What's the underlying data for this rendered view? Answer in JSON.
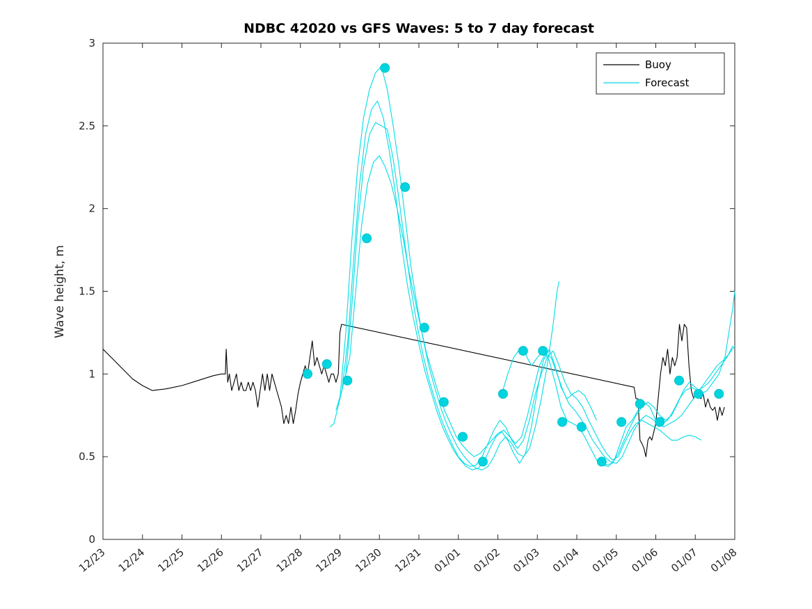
{
  "chart_data": {
    "type": "line",
    "title": "NDBC 42020 vs GFS Waves: 5 to 7 day forecast",
    "xlabel": "",
    "ylabel": "Wave height, m",
    "xlim": [
      0,
      16
    ],
    "ylim": [
      0,
      3
    ],
    "grid": false,
    "yticks": [
      0,
      0.5,
      1,
      1.5,
      2,
      2.5,
      3
    ],
    "ytick_labels": [
      "0",
      "0.5",
      "1",
      "1.5",
      "2",
      "2.5",
      "3"
    ],
    "xticks": [
      0,
      1,
      2,
      3,
      4,
      5,
      6,
      7,
      8,
      9,
      10,
      11,
      12,
      13,
      14,
      15,
      16
    ],
    "xtick_labels": [
      "12/23",
      "12/24",
      "12/25",
      "12/26",
      "12/27",
      "12/28",
      "12/29",
      "12/30",
      "12/31",
      "01/01",
      "01/02",
      "01/03",
      "01/04",
      "01/05",
      "01/06",
      "01/07",
      "01/08"
    ],
    "x_unit": "days since 12/23",
    "colors": {
      "buoy": "#000000",
      "forecast": "#00DCE6",
      "marker_fill": "#00D4DE",
      "marker_edge": "#00C2CE",
      "axis": "#262626",
      "background": "#FFFFFF"
    },
    "legend": {
      "position": "top-right",
      "entries": [
        {
          "label": "Buoy",
          "color": "#000000"
        },
        {
          "label": "Forecast",
          "color": "#00DCE6"
        }
      ]
    },
    "series": [
      {
        "name": "Buoy",
        "type": "line",
        "color": "#000000",
        "x": [
          0,
          0.25,
          0.5,
          0.75,
          1.0,
          1.25,
          1.6,
          2.0,
          2.4,
          2.8,
          3.0,
          3.05,
          3.1,
          3.12,
          3.16,
          3.2,
          3.26,
          3.32,
          3.38,
          3.44,
          3.5,
          3.56,
          3.62,
          3.68,
          3.74,
          3.8,
          3.86,
          3.92,
          3.98,
          4.04,
          4.1,
          4.16,
          4.22,
          4.28,
          4.34,
          4.4,
          4.46,
          4.52,
          4.58,
          4.64,
          4.7,
          4.76,
          4.82,
          4.88,
          4.94,
          5.0,
          5.06,
          5.12,
          5.18,
          5.24,
          5.3,
          5.36,
          5.42,
          5.48,
          5.54,
          5.6,
          5.66,
          5.72,
          5.78,
          5.84,
          5.9,
          5.96,
          6.0,
          6.04,
          13.45,
          13.5,
          13.55,
          13.6,
          13.65,
          13.7,
          13.75,
          13.8,
          13.85,
          13.9,
          13.95,
          14.0,
          14.06,
          14.12,
          14.18,
          14.24,
          14.3,
          14.36,
          14.42,
          14.48,
          14.54,
          14.6,
          14.66,
          14.72,
          14.78,
          14.84,
          14.9,
          14.96,
          15.02,
          15.08,
          15.14,
          15.2,
          15.26,
          15.32,
          15.38,
          15.44,
          15.5,
          15.56,
          15.62,
          15.68,
          15.74
        ],
        "y": [
          1.15,
          1.09,
          1.03,
          0.97,
          0.93,
          0.9,
          0.91,
          0.93,
          0.96,
          0.99,
          1.0,
          1.0,
          1.0,
          1.15,
          0.95,
          1.0,
          0.9,
          0.95,
          1.0,
          0.9,
          0.95,
          0.9,
          0.9,
          0.95,
          0.9,
          0.95,
          0.9,
          0.8,
          0.9,
          1.0,
          0.9,
          1.0,
          0.9,
          1.0,
          0.95,
          0.9,
          0.85,
          0.8,
          0.7,
          0.75,
          0.7,
          0.8,
          0.7,
          0.78,
          0.88,
          0.95,
          1.0,
          1.05,
          1.0,
          1.1,
          1.2,
          1.05,
          1.1,
          1.05,
          1.0,
          1.05,
          1.0,
          0.95,
          1.0,
          1.0,
          0.95,
          1.0,
          1.25,
          1.3,
          0.92,
          0.85,
          0.85,
          0.6,
          0.58,
          0.55,
          0.5,
          0.6,
          0.62,
          0.6,
          0.65,
          0.7,
          0.85,
          1.0,
          1.1,
          1.05,
          1.15,
          1.0,
          1.1,
          1.05,
          1.1,
          1.3,
          1.2,
          1.3,
          1.28,
          1.05,
          0.9,
          0.85,
          0.9,
          0.88,
          0.85,
          0.88,
          0.8,
          0.85,
          0.8,
          0.78,
          0.8,
          0.72,
          0.8,
          0.75,
          0.8
        ]
      },
      {
        "name": "Forecast run 1",
        "type": "line",
        "color": "#00DCE6",
        "x": [
          5.75,
          5.85,
          6.0,
          6.15,
          6.3,
          6.45,
          6.6,
          6.75,
          6.9,
          7.05,
          7.2,
          7.35,
          7.5,
          7.65,
          7.8,
          7.95,
          8.1,
          8.25,
          8.4,
          8.55,
          8.7,
          8.85,
          9.0,
          9.15,
          9.3,
          9.45,
          9.6,
          9.75,
          9.9,
          10.05,
          10.2,
          10.35,
          10.5,
          10.65,
          10.8,
          10.95,
          11.1,
          11.25,
          11.4,
          11.5,
          11.55
        ],
        "y": [
          0.68,
          0.7,
          0.85,
          1.25,
          1.8,
          2.25,
          2.55,
          2.72,
          2.82,
          2.86,
          2.72,
          2.5,
          2.25,
          1.95,
          1.65,
          1.42,
          1.22,
          1.05,
          0.92,
          0.8,
          0.7,
          0.62,
          0.55,
          0.5,
          0.46,
          0.43,
          0.42,
          0.44,
          0.5,
          0.58,
          0.62,
          0.58,
          0.52,
          0.5,
          0.55,
          0.68,
          0.85,
          1.05,
          1.3,
          1.5,
          1.56
        ]
      },
      {
        "name": "Forecast run 2",
        "type": "line",
        "color": "#00DCE6",
        "x": [
          5.9,
          6.05,
          6.2,
          6.35,
          6.5,
          6.65,
          6.8,
          6.95,
          7.1,
          7.25,
          7.4,
          7.55,
          7.7,
          7.85,
          8.0,
          8.15,
          8.3,
          8.45,
          8.6,
          8.75,
          8.9,
          9.05,
          9.2,
          9.35,
          9.5,
          9.65,
          9.8,
          9.95,
          10.1,
          10.25,
          10.4,
          10.55,
          10.7,
          10.85,
          11.0,
          11.15,
          11.3,
          11.45,
          11.6,
          11.75,
          11.9,
          12.05,
          12.2,
          12.35,
          12.5
        ],
        "y": [
          0.78,
          0.9,
          1.2,
          1.7,
          2.15,
          2.45,
          2.6,
          2.65,
          2.55,
          2.35,
          2.1,
          1.8,
          1.55,
          1.35,
          1.18,
          1.02,
          0.9,
          0.78,
          0.68,
          0.6,
          0.53,
          0.48,
          0.44,
          0.42,
          0.43,
          0.47,
          0.55,
          0.62,
          0.65,
          0.6,
          0.52,
          0.46,
          0.52,
          0.68,
          0.9,
          1.08,
          1.15,
          1.05,
          0.92,
          0.85,
          0.88,
          0.9,
          0.87,
          0.8,
          0.72
        ]
      },
      {
        "name": "Forecast run 3",
        "type": "line",
        "color": "#00DCE6",
        "x": [
          6.0,
          6.15,
          6.3,
          6.45,
          6.6,
          6.75,
          6.9,
          7.05,
          7.2,
          7.35,
          7.5,
          7.65,
          7.8,
          7.95,
          8.1,
          8.25,
          8.4,
          8.55,
          8.7,
          8.85,
          9.0,
          9.15,
          9.3,
          9.45,
          9.6,
          9.75,
          9.9,
          10.05,
          10.2,
          10.35,
          10.5,
          10.65,
          10.8,
          10.95,
          11.1,
          11.25,
          11.4,
          11.55,
          11.7,
          11.85,
          12.0,
          12.15,
          12.3,
          12.45,
          12.6,
          12.75,
          12.9,
          13.05,
          13.2,
          13.35,
          13.5,
          13.65,
          13.8,
          13.95,
          14.1,
          14.25,
          14.4,
          14.55,
          14.7,
          14.85,
          15.0,
          15.15
        ],
        "y": [
          0.85,
          1.0,
          1.4,
          1.9,
          2.25,
          2.45,
          2.52,
          2.5,
          2.48,
          2.3,
          2.05,
          1.78,
          1.52,
          1.3,
          1.12,
          0.97,
          0.85,
          0.74,
          0.65,
          0.57,
          0.5,
          0.46,
          0.44,
          0.45,
          0.5,
          0.58,
          0.66,
          0.72,
          0.68,
          0.6,
          0.55,
          0.6,
          0.72,
          0.88,
          1.0,
          1.1,
          1.14,
          1.05,
          0.95,
          0.88,
          0.85,
          0.8,
          0.72,
          0.65,
          0.58,
          0.52,
          0.48,
          0.5,
          0.58,
          0.65,
          0.7,
          0.72,
          0.7,
          0.68,
          0.66,
          0.63,
          0.6,
          0.6,
          0.62,
          0.63,
          0.62,
          0.6
        ]
      },
      {
        "name": "Forecast run 4",
        "type": "line",
        "color": "#00DCE6",
        "x": [
          6.1,
          6.25,
          6.4,
          6.55,
          6.7,
          6.85,
          7.0,
          7.15,
          7.3,
          7.45,
          7.6,
          7.75,
          7.9,
          8.05,
          8.2,
          8.35,
          8.5,
          8.65,
          8.8,
          8.95,
          9.1,
          9.25,
          9.4,
          9.55,
          9.7,
          9.85,
          10.0,
          10.15,
          10.3,
          10.45,
          10.6,
          10.75,
          10.9,
          11.05,
          11.2,
          11.35,
          11.5,
          11.65,
          11.8,
          11.95,
          12.1,
          12.25,
          12.4,
          12.55,
          12.7,
          12.85,
          13.0,
          13.15,
          13.3,
          13.45,
          13.6,
          13.75,
          13.9,
          14.05,
          14.2,
          14.35,
          14.5,
          14.65,
          14.8,
          14.95,
          15.1,
          15.25,
          15.4,
          15.55,
          15.7,
          15.85,
          16.0
        ],
        "y": [
          0.95,
          1.1,
          1.5,
          1.9,
          2.15,
          2.28,
          2.32,
          2.25,
          2.15,
          2.0,
          1.82,
          1.62,
          1.45,
          1.28,
          1.12,
          1.0,
          0.88,
          0.78,
          0.7,
          0.62,
          0.57,
          0.53,
          0.5,
          0.52,
          0.56,
          0.6,
          0.64,
          0.66,
          0.62,
          0.58,
          0.62,
          0.75,
          0.9,
          1.05,
          1.12,
          1.1,
          1.0,
          0.9,
          0.82,
          0.78,
          0.73,
          0.67,
          0.6,
          0.55,
          0.5,
          0.47,
          0.46,
          0.5,
          0.58,
          0.66,
          0.72,
          0.75,
          0.73,
          0.7,
          0.68,
          0.7,
          0.72,
          0.75,
          0.8,
          0.85,
          0.9,
          0.95,
          1.0,
          1.05,
          1.08,
          1.12,
          1.17
        ]
      },
      {
        "name": "Forecast run 5",
        "type": "line",
        "color": "#00DCE6",
        "x": [
          10.1,
          10.25,
          10.4,
          10.55,
          10.7,
          10.85,
          11.0,
          11.15,
          11.3,
          11.45,
          11.6,
          11.75,
          11.9,
          12.05,
          12.2,
          12.35,
          12.5,
          12.65,
          12.8,
          12.95,
          13.1,
          13.25,
          13.4,
          13.55,
          13.7,
          13.85,
          14.0,
          14.15,
          14.3,
          14.45,
          14.6,
          14.75,
          14.9,
          15.05,
          15.2,
          15.35,
          15.5,
          15.65,
          15.8,
          15.95
        ],
        "y": [
          0.88,
          1.0,
          1.1,
          1.15,
          1.12,
          1.05,
          1.1,
          1.14,
          1.08,
          0.95,
          0.8,
          0.72,
          0.7,
          0.68,
          0.62,
          0.55,
          0.48,
          0.45,
          0.44,
          0.48,
          0.58,
          0.68,
          0.72,
          0.78,
          0.83,
          0.8,
          0.72,
          0.7,
          0.72,
          0.78,
          0.85,
          0.9,
          0.92,
          0.9,
          0.92,
          0.95,
          1.0,
          1.05,
          1.1,
          1.17
        ]
      },
      {
        "name": "Forecast run 6",
        "type": "line",
        "color": "#00DCE6",
        "x": [
          12.6,
          12.75,
          12.9,
          13.05,
          13.2,
          13.35,
          13.5,
          13.65,
          13.8,
          13.95,
          14.1,
          14.25,
          14.4,
          14.55,
          14.7,
          14.85,
          15.0,
          15.15,
          15.3,
          15.45,
          15.6,
          15.75,
          15.85,
          15.95,
          16.0
        ],
        "y": [
          0.47,
          0.45,
          0.46,
          0.52,
          0.6,
          0.68,
          0.75,
          0.8,
          0.83,
          0.8,
          0.75,
          0.72,
          0.75,
          0.82,
          0.9,
          0.95,
          0.92,
          0.88,
          0.9,
          0.95,
          1.0,
          1.1,
          1.25,
          1.4,
          1.5
        ]
      },
      {
        "name": "Forecast markers",
        "type": "scatter",
        "color": "#00D4DE",
        "x": [
          5.18,
          5.67,
          6.19,
          6.68,
          7.14,
          7.65,
          8.14,
          8.63,
          9.11,
          9.62,
          10.13,
          10.64,
          11.14,
          11.63,
          12.12,
          12.63,
          13.13,
          13.6,
          14.1,
          14.59,
          15.08,
          15.6
        ],
        "y": [
          1.0,
          1.06,
          0.96,
          1.82,
          2.85,
          2.13,
          1.28,
          0.83,
          0.62,
          0.47,
          0.88,
          1.14,
          1.14,
          0.71,
          0.68,
          0.47,
          0.71,
          0.82,
          0.71,
          0.96,
          0.88,
          0.88
        ]
      }
    ]
  }
}
